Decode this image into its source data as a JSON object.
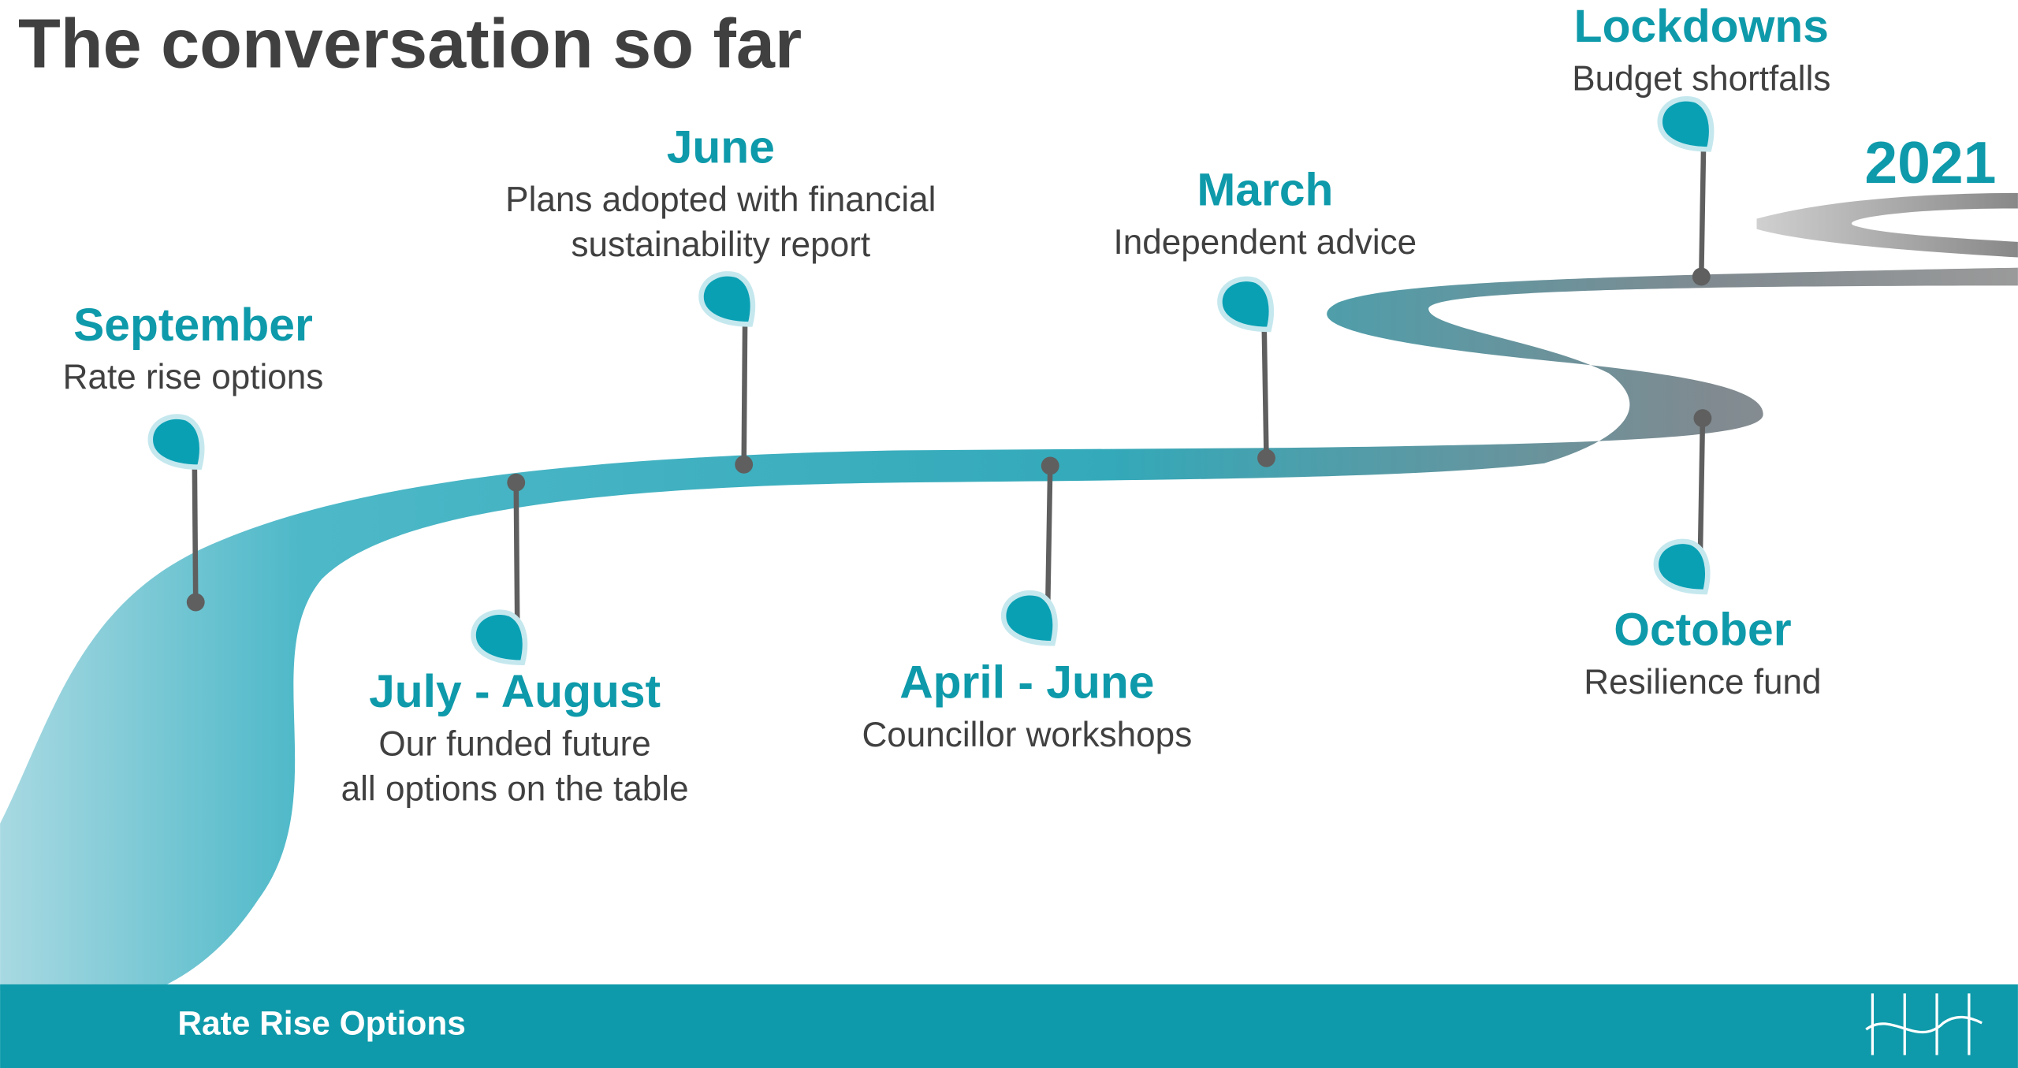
{
  "title": "The conversation so far",
  "year": "2021",
  "milestones": [
    {
      "label": "September",
      "lines": [
        "Rate rise options"
      ]
    },
    {
      "label": "July - August",
      "lines": [
        "Our funded future",
        "all options on the table"
      ]
    },
    {
      "label": "June",
      "lines": [
        "Plans adopted with financial",
        "sustainability report"
      ]
    },
    {
      "label": "April - June",
      "lines": [
        "Councillor workshops"
      ]
    },
    {
      "label": "March",
      "lines": [
        "Independent advice"
      ]
    },
    {
      "label": "October",
      "lines": [
        "Resilience fund"
      ]
    },
    {
      "label": "Lockdowns",
      "lines": [
        "Budget shortfalls"
      ]
    }
  ],
  "footer": "Rate Rise Options"
}
